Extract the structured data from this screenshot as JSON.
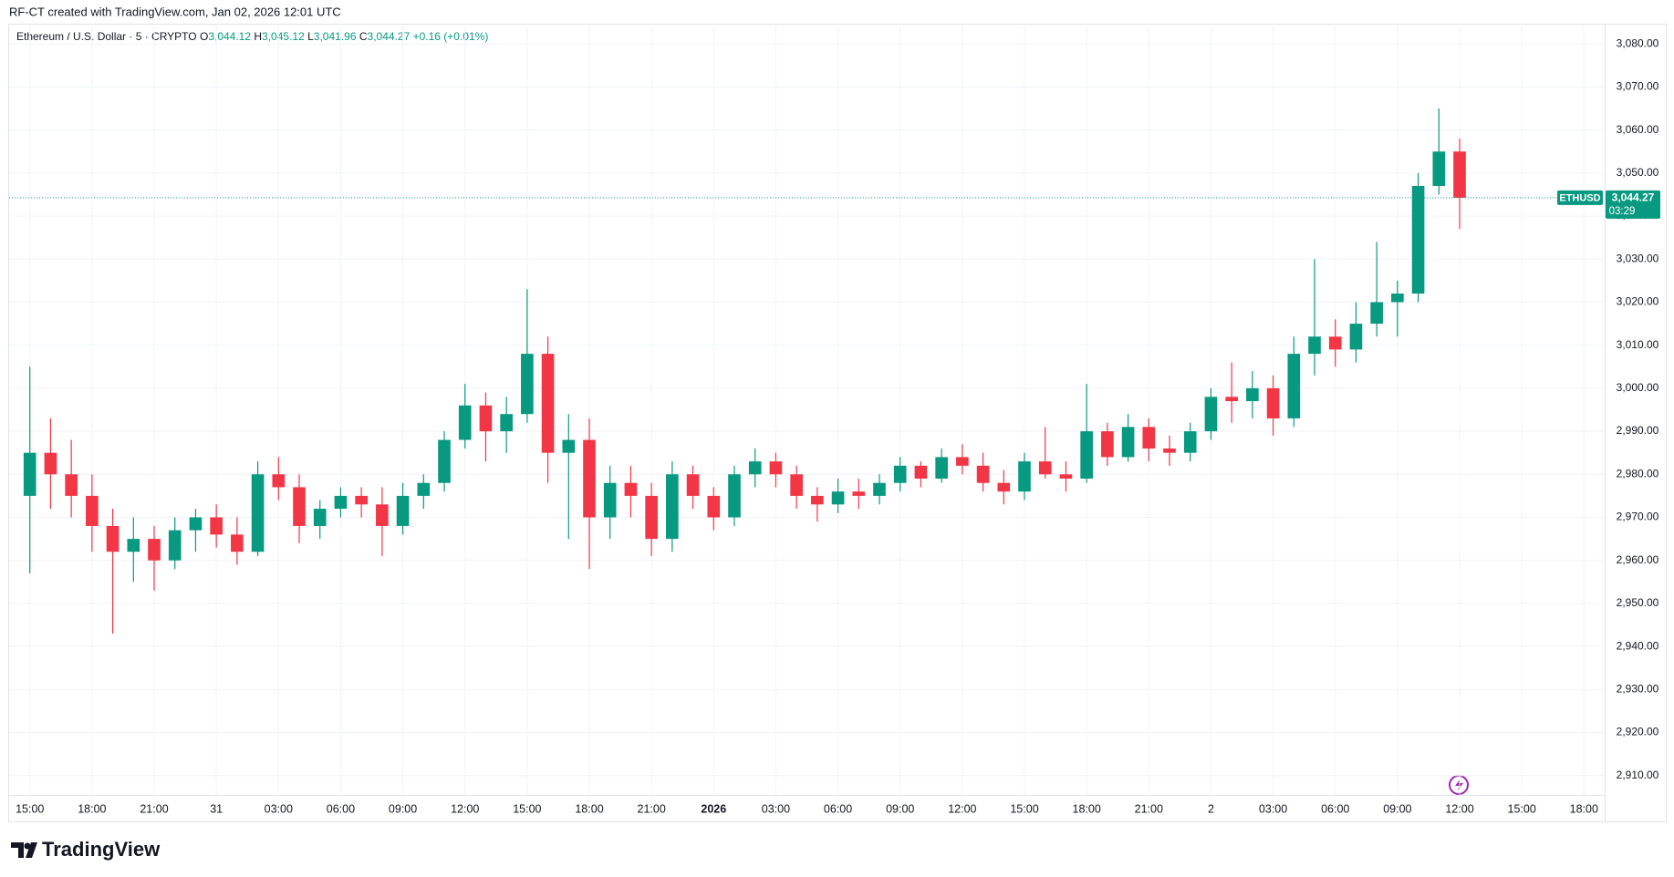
{
  "header": "RF-CT created with TradingView.com, Jan 02, 2026 12:01 UTC",
  "footer": "TradingView",
  "chart_data": {
    "type": "candlestick",
    "legend": {
      "symbol": "Ethereum / U.S. Dollar · 5 · CRYPTO",
      "items": [
        {
          "key": "O",
          "value": "3,044.12"
        },
        {
          "key": "H",
          "value": "3,045.12"
        },
        {
          "key": "L",
          "value": "3,041.96"
        },
        {
          "key": "C",
          "value": "3,044.27"
        }
      ],
      "change": "+0.16 (+0.01%)"
    },
    "up_color": "#089981",
    "down_color": "#f23645",
    "grid": true,
    "x": [
      0,
      1,
      2,
      3,
      4,
      5,
      6,
      7,
      8,
      9,
      10,
      11,
      12,
      13,
      14,
      15,
      16,
      17,
      18,
      19,
      20,
      21,
      22,
      23,
      24,
      25,
      26,
      27,
      28,
      29,
      30,
      31,
      32,
      33,
      34,
      35,
      36,
      37,
      38,
      39,
      40,
      41,
      42,
      43,
      44,
      45,
      46,
      47,
      48,
      49,
      50,
      51,
      52,
      53,
      54,
      55,
      56,
      57,
      58,
      59,
      60,
      61,
      62,
      63,
      64,
      65,
      66,
      67,
      68,
      69
    ],
    "open": [
      2975,
      2985,
      2980,
      2975,
      2968,
      2962,
      2965,
      2960,
      2967,
      2970,
      2966,
      2962,
      2980,
      2977,
      2968,
      2972,
      2975,
      2973,
      2968,
      2975,
      2978,
      2988,
      2996,
      2990,
      2994,
      3008,
      2985,
      2988,
      2970,
      2978,
      2975,
      2965,
      2980,
      2975,
      2970,
      2980,
      2983,
      2980,
      2975,
      2973,
      2976,
      2975,
      2978,
      2982,
      2979,
      2984,
      2982,
      2978,
      2976,
      2983,
      2980,
      2979,
      2990,
      2984,
      2991,
      2986,
      2985,
      2990,
      2998,
      2997,
      3000,
      2993,
      3008,
      3012,
      3009,
      3015,
      3020,
      3022,
      3047,
      3055
    ],
    "high": [
      3005,
      2993,
      2988,
      2980,
      2972,
      2970,
      2968,
      2970,
      2972,
      2973,
      2970,
      2983,
      2984,
      2980,
      2974,
      2977,
      2977,
      2977,
      2978,
      2980,
      2990,
      3001,
      2999,
      2998,
      3023,
      3012,
      2994,
      2993,
      2982,
      2982,
      2978,
      2983,
      2982,
      2977,
      2982,
      2986,
      2985,
      2982,
      2977,
      2979,
      2979,
      2980,
      2984,
      2983,
      2986,
      2987,
      2985,
      2981,
      2985,
      2991,
      2983,
      3001,
      2992,
      2994,
      2993,
      2989,
      2992,
      3000,
      3006,
      3004,
      3003,
      3012,
      3030,
      3016,
      3020,
      3034,
      3025,
      3050,
      3065,
      3058
    ],
    "low": [
      2957,
      2972,
      2970,
      2962,
      2943,
      2955,
      2953,
      2958,
      2962,
      2963,
      2959,
      2961,
      2974,
      2964,
      2965,
      2970,
      2970,
      2961,
      2966,
      2972,
      2976,
      2986,
      2983,
      2985,
      2992,
      2978,
      2965,
      2958,
      2965,
      2970,
      2961,
      2962,
      2972,
      2967,
      2968,
      2977,
      2977,
      2972,
      2969,
      2971,
      2972,
      2973,
      2976,
      2977,
      2978,
      2980,
      2976,
      2973,
      2974,
      2979,
      2976,
      2978,
      2982,
      2983,
      2983,
      2982,
      2983,
      2988,
      2992,
      2993,
      2989,
      2991,
      3003,
      3005,
      3006,
      3012,
      3012,
      3020,
      3045,
      3037
    ],
    "close": [
      2985,
      2980,
      2975,
      2968,
      2962,
      2965,
      2960,
      2967,
      2970,
      2966,
      2962,
      2980,
      2977,
      2968,
      2972,
      2975,
      2973,
      2968,
      2975,
      2978,
      2988,
      2996,
      2990,
      2994,
      3008,
      2985,
      2988,
      2970,
      2978,
      2975,
      2965,
      2980,
      2975,
      2970,
      2980,
      2983,
      2980,
      2975,
      2973,
      2976,
      2975,
      2978,
      2982,
      2979,
      2984,
      2982,
      2978,
      2976,
      2983,
      2980,
      2979,
      2990,
      2984,
      2991,
      2986,
      2985,
      2990,
      2998,
      2997,
      3000,
      2993,
      3008,
      3012,
      3009,
      3015,
      3020,
      3022,
      3047,
      3055,
      3044.27
    ],
    "xlim": [
      -1,
      76
    ],
    "xticks": [
      {
        "value": 0,
        "label": "15:00"
      },
      {
        "value": 3,
        "label": "18:00"
      },
      {
        "value": 6,
        "label": "21:00"
      },
      {
        "value": 9,
        "label": "31"
      },
      {
        "value": 12,
        "label": "03:00"
      },
      {
        "value": 15,
        "label": "06:00"
      },
      {
        "value": 18,
        "label": "09:00"
      },
      {
        "value": 21,
        "label": "12:00"
      },
      {
        "value": 24,
        "label": "15:00"
      },
      {
        "value": 27,
        "label": "18:00"
      },
      {
        "value": 30,
        "label": "21:00"
      },
      {
        "value": 33,
        "label": "2026"
      },
      {
        "value": 36,
        "label": "03:00"
      },
      {
        "value": 39,
        "label": "06:00"
      },
      {
        "value": 42,
        "label": "09:00"
      },
      {
        "value": 45,
        "label": "12:00"
      },
      {
        "value": 48,
        "label": "15:00"
      },
      {
        "value": 51,
        "label": "18:00"
      },
      {
        "value": 54,
        "label": "21:00"
      },
      {
        "value": 57,
        "label": "2"
      },
      {
        "value": 60,
        "label": "03:00"
      },
      {
        "value": 63,
        "label": "06:00"
      },
      {
        "value": 66,
        "label": "09:00"
      },
      {
        "value": 69,
        "label": "12:00"
      },
      {
        "value": 72,
        "label": "15:00"
      },
      {
        "value": 75,
        "label": "18:00"
      }
    ],
    "ylim": [
      2905.5,
      3084.7
    ],
    "yticks": [
      {
        "value": 2910,
        "label": "2,910.00"
      },
      {
        "value": 2920,
        "label": "2,920.00"
      },
      {
        "value": 2930,
        "label": "2,930.00"
      },
      {
        "value": 2940,
        "label": "2,940.00"
      },
      {
        "value": 2950,
        "label": "2,950.00"
      },
      {
        "value": 2960,
        "label": "2,960.00"
      },
      {
        "value": 2970,
        "label": "2,970.00"
      },
      {
        "value": 2980,
        "label": "2,980.00"
      },
      {
        "value": 2990,
        "label": "2,990.00"
      },
      {
        "value": 3000,
        "label": "3,000.00"
      },
      {
        "value": 3010,
        "label": "3,010.00"
      },
      {
        "value": 3020,
        "label": "3,020.00"
      },
      {
        "value": 3030,
        "label": "3,030.00"
      },
      {
        "value": 3040,
        "label": "3,040.00"
      },
      {
        "value": 3050,
        "label": "3,050.00"
      },
      {
        "value": 3060,
        "label": "3,060.00"
      },
      {
        "value": 3070,
        "label": "3,070.00"
      },
      {
        "value": 3080,
        "label": "3,080.00"
      }
    ],
    "last_price": {
      "value": 3044.27,
      "label": "3,044.27"
    },
    "last_price_symbol": "ETHUSD",
    "countdown": "03:29"
  }
}
